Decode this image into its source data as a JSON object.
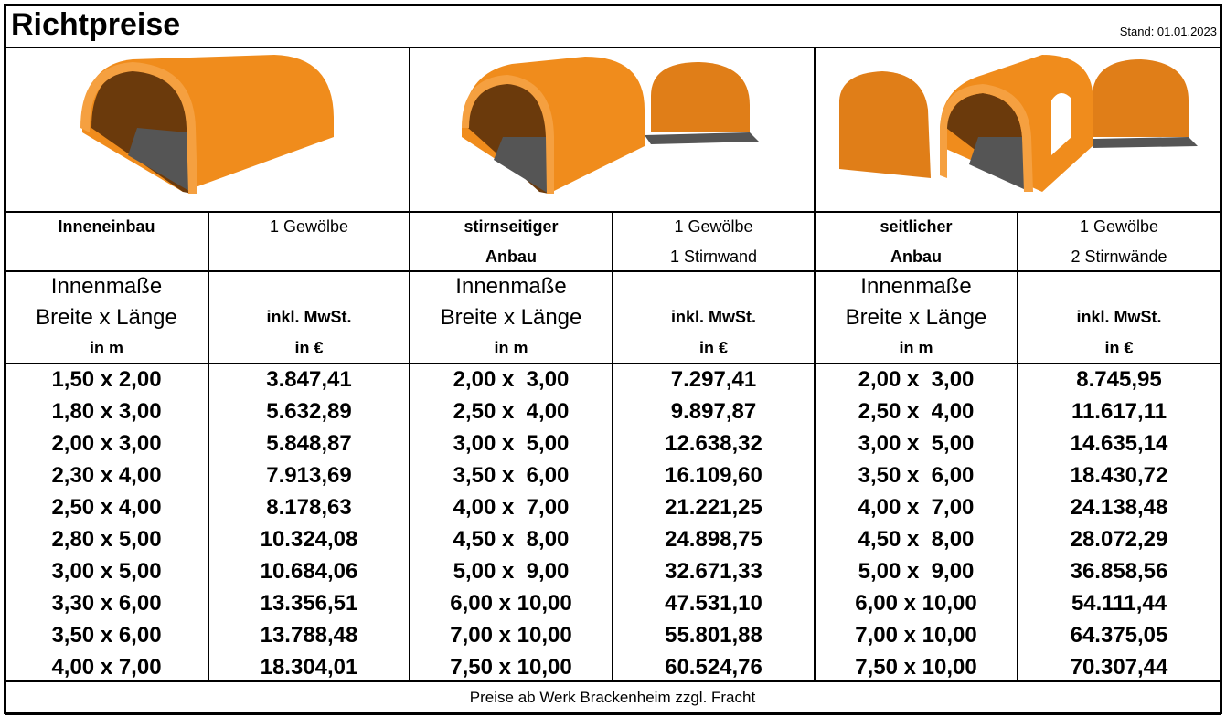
{
  "header": {
    "title": "Richtpreise",
    "stand": "Stand: 01.01.2023"
  },
  "sections": [
    {
      "name": [
        "Inneneinbau"
      ],
      "contents": [
        "1 Gewölbe"
      ]
    },
    {
      "name": [
        "stirnseitiger",
        "Anbau"
      ],
      "contents": [
        "1 Gewölbe",
        "1 Stirnwand"
      ]
    },
    {
      "name": [
        "seitlicher",
        "Anbau"
      ],
      "contents": [
        "1 Gewölbe",
        "2 Stirnwände"
      ]
    }
  ],
  "column_headers": {
    "size": [
      "Innenmaße",
      "Breite x Länge",
      "in m"
    ],
    "price": [
      "inkl. MwSt.",
      "in €"
    ]
  },
  "table": {
    "rows": [
      [
        "1,50 x 2,00",
        "3.847,41",
        "2,00 x  3,00",
        "7.297,41",
        "2,00 x  3,00",
        "8.745,95"
      ],
      [
        "1,80 x 3,00",
        "5.632,89",
        "2,50 x  4,00",
        "9.897,87",
        "2,50 x  4,00",
        "11.617,11"
      ],
      [
        "2,00 x 3,00",
        "5.848,87",
        "3,00 x  5,00",
        "12.638,32",
        "3,00 x  5,00",
        "14.635,14"
      ],
      [
        "2,30 x 4,00",
        "7.913,69",
        "3,50 x  6,00",
        "16.109,60",
        "3,50 x  6,00",
        "18.430,72"
      ],
      [
        "2,50 x 4,00",
        "8.178,63",
        "4,00 x  7,00",
        "21.221,25",
        "4,00 x  7,00",
        "24.138,48"
      ],
      [
        "2,80 x 5,00",
        "10.324,08",
        "4,50 x  8,00",
        "24.898,75",
        "4,50 x  8,00",
        "28.072,29"
      ],
      [
        "3,00 x 5,00",
        "10.684,06",
        "5,00 x  9,00",
        "32.671,33",
        "5,00 x  9,00",
        "36.858,56"
      ],
      [
        "3,30 x 6,00",
        "13.356,51",
        "6,00 x 10,00",
        "47.531,10",
        "6,00 x 10,00",
        "54.111,44"
      ],
      [
        "3,50 x 6,00",
        "13.788,48",
        "7,00 x 10,00",
        "55.801,88",
        "7,00 x 10,00",
        "64.375,05"
      ],
      [
        "4,00 x 7,00",
        "18.304,01",
        "7,50 x 10,00",
        "60.524,76",
        "7,50 x 10,00",
        "70.307,44"
      ]
    ]
  },
  "footer": "Preise ab Werk Brackenheim zzgl. Fracht"
}
